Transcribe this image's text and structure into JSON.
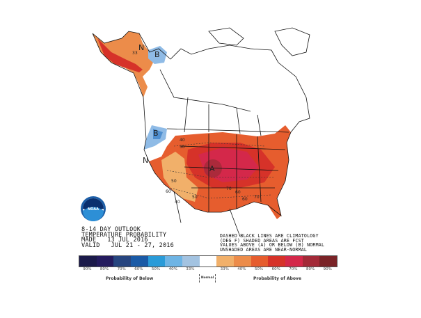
{
  "header": {
    "line1": "8-14 DAY OUTLOOK",
    "line2": "TEMPERATURE PROBABILITY",
    "line3": "MADE   13 JUL 2016",
    "line4": "VALID   JUL 21 - 27, 2016"
  },
  "notes": {
    "line1": "DASHED BLACK LINES ARE CLIMATOLOGY",
    "line2": "(DEG F) SHADED AREAS ARE FCST",
    "line3": "VALUES ABOVE (A) OR BELOW (B) NORMAL",
    "line4": "UNSHADED AREAS ARE NEAR-NORMAL"
  },
  "logo": {
    "text": "NOAA"
  },
  "map_labels": {
    "above": "A",
    "below_ak": "B",
    "below_nw": "B",
    "normal_ak": "N",
    "normal_ca": "N",
    "contours": [
      "40",
      "50",
      "60",
      "70",
      "50",
      "40",
      "50",
      "60",
      "70",
      "60",
      "33"
    ]
  },
  "legend": {
    "colors": [
      "#1b1a4a",
      "#241b5e",
      "#27457f",
      "#1a5aa6",
      "#2a9bd8",
      "#6eb4e4",
      "#a3c3e1",
      "#ffffff",
      "#f1b06a",
      "#ec8c4a",
      "#e65d2e",
      "#d63229",
      "#d4284a",
      "#a32a38",
      "#7a2327"
    ],
    "ticks": [
      "90%",
      "80%",
      "70%",
      "60%",
      "50%",
      "40%",
      "33%",
      "",
      "33%",
      "40%",
      "50%",
      "60%",
      "70%",
      "80%",
      "90%"
    ],
    "below_label": "Probability of Below",
    "normal_label": "Normal",
    "above_label": "Probability of Above"
  }
}
